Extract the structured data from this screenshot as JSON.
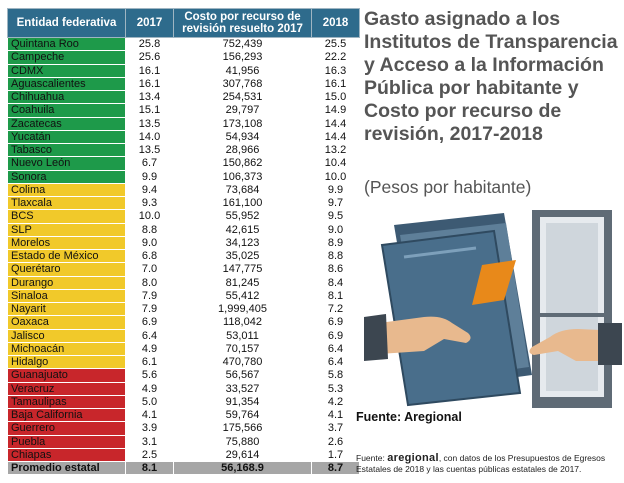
{
  "table": {
    "headers": {
      "entidad": "Entidad federativa",
      "y2017": "2017",
      "costo": "Costo por recurso de revisión resuelto 2017",
      "y2018": "2018"
    },
    "rows": [
      {
        "entidad": "Quintana Roo",
        "v2017": "25.8",
        "costo": "752,439",
        "v2018": "25.5",
        "group": "g"
      },
      {
        "entidad": "Campeche",
        "v2017": "25.6",
        "costo": "156,293",
        "v2018": "22.2",
        "group": "g"
      },
      {
        "entidad": "CDMX",
        "v2017": "16.1",
        "costo": "41,956",
        "v2018": "16.3",
        "group": "g"
      },
      {
        "entidad": "Aguascalientes",
        "v2017": "16.1",
        "costo": "307,768",
        "v2018": "16.1",
        "group": "g"
      },
      {
        "entidad": "Chihuahua",
        "v2017": "13.4",
        "costo": "254,531",
        "v2018": "15.0",
        "group": "g"
      },
      {
        "entidad": "Coahuila",
        "v2017": "15.1",
        "costo": "29,797",
        "v2018": "14.9",
        "group": "g"
      },
      {
        "entidad": "Zacatecas",
        "v2017": "13.5",
        "costo": "173,108",
        "v2018": "14.4",
        "group": "g"
      },
      {
        "entidad": "Yucatán",
        "v2017": "14.0",
        "costo": "54,934",
        "v2018": "14.4",
        "group": "g"
      },
      {
        "entidad": "Tabasco",
        "v2017": "13.5",
        "costo": "28,966",
        "v2018": "13.2",
        "group": "g"
      },
      {
        "entidad": "Nuevo León",
        "v2017": "6.7",
        "costo": "150,862",
        "v2018": "10.4",
        "group": "g"
      },
      {
        "entidad": "Sonora",
        "v2017": "9.9",
        "costo": "106,373",
        "v2018": "10.0",
        "group": "g"
      },
      {
        "entidad": "Colima",
        "v2017": "9.4",
        "costo": "73,684",
        "v2018": "9.9",
        "group": "y"
      },
      {
        "entidad": "Tlaxcala",
        "v2017": "9.3",
        "costo": "161,100",
        "v2018": "9.7",
        "group": "y"
      },
      {
        "entidad": "BCS",
        "v2017": "10.0",
        "costo": "55,952",
        "v2018": "9.5",
        "group": "y"
      },
      {
        "entidad": "SLP",
        "v2017": "8.8",
        "costo": "42,615",
        "v2018": "9.0",
        "group": "y"
      },
      {
        "entidad": "Morelos",
        "v2017": "9.0",
        "costo": "34,123",
        "v2018": "8.9",
        "group": "y"
      },
      {
        "entidad": "Estado de México",
        "v2017": "6.8",
        "costo": "35,025",
        "v2018": "8.8",
        "group": "y"
      },
      {
        "entidad": "Querétaro",
        "v2017": "7.0",
        "costo": "147,775",
        "v2018": "8.6",
        "group": "y"
      },
      {
        "entidad": "Durango",
        "v2017": "8.0",
        "costo": "81,245",
        "v2018": "8.4",
        "group": "y"
      },
      {
        "entidad": "Sinaloa",
        "v2017": "7.9",
        "costo": "55,412",
        "v2018": "8.1",
        "group": "y"
      },
      {
        "entidad": "Nayarit",
        "v2017": "7.9",
        "costo": "1,999,405",
        "v2018": "7.2",
        "group": "y"
      },
      {
        "entidad": "Oaxaca",
        "v2017": "6.9",
        "costo": "118,042",
        "v2018": "6.9",
        "group": "y"
      },
      {
        "entidad": "Jalisco",
        "v2017": "6.4",
        "costo": "53,011",
        "v2018": "6.9",
        "group": "y"
      },
      {
        "entidad": "Michoacán",
        "v2017": "4.9",
        "costo": "70,157",
        "v2018": "6.4",
        "group": "y"
      },
      {
        "entidad": "Hidalgo",
        "v2017": "6.1",
        "costo": "470,780",
        "v2018": "6.4",
        "group": "y"
      },
      {
        "entidad": "Guanajuato",
        "v2017": "5.6",
        "costo": "56,567",
        "v2018": "5.8",
        "group": "r"
      },
      {
        "entidad": "Veracruz",
        "v2017": "4.9",
        "costo": "33,527",
        "v2018": "5.3",
        "group": "r"
      },
      {
        "entidad": "Tamaulipas",
        "v2017": "5.0",
        "costo": "91,354",
        "v2018": "4.2",
        "group": "r"
      },
      {
        "entidad": "Baja California",
        "v2017": "4.1",
        "costo": "59,764",
        "v2018": "4.1",
        "group": "r"
      },
      {
        "entidad": "Guerrero",
        "v2017": "3.9",
        "costo": "175,566",
        "v2018": "3.7",
        "group": "r"
      },
      {
        "entidad": "Puebla",
        "v2017": "3.1",
        "costo": "75,880",
        "v2018": "2.6",
        "group": "r"
      },
      {
        "entidad": "Chiapas",
        "v2017": "2.5",
        "costo": "29,614",
        "v2018": "1.7",
        "group": "r"
      }
    ],
    "total": {
      "entidad": "Promedio estatal",
      "v2017": "8.1",
      "costo": "56,168.9",
      "v2018": "8.7"
    }
  },
  "colors": {
    "header": "#2e6b8c",
    "green": "#1e9a4a",
    "yellow": "#f1c92a",
    "red": "#c8262b",
    "total": "#a6a6a6"
  },
  "heading": {
    "title": "Gasto asignado a los Institutos de Transparencia y Acceso a la Información Pública por habitante y Costo por recurso de revisión, 2017-2018",
    "subtitle": "(Pesos por habitante)"
  },
  "source": {
    "label": "Fuente: Aregional",
    "note_prefix": "Fuente:",
    "note_brand": "aregional",
    "note_text": ", con datos de los Presupuestos de Egresos Estatales de 2018 y las cuentas públicas estatales de 2017."
  },
  "illustration": {
    "icon": "folder-handover-icon"
  }
}
